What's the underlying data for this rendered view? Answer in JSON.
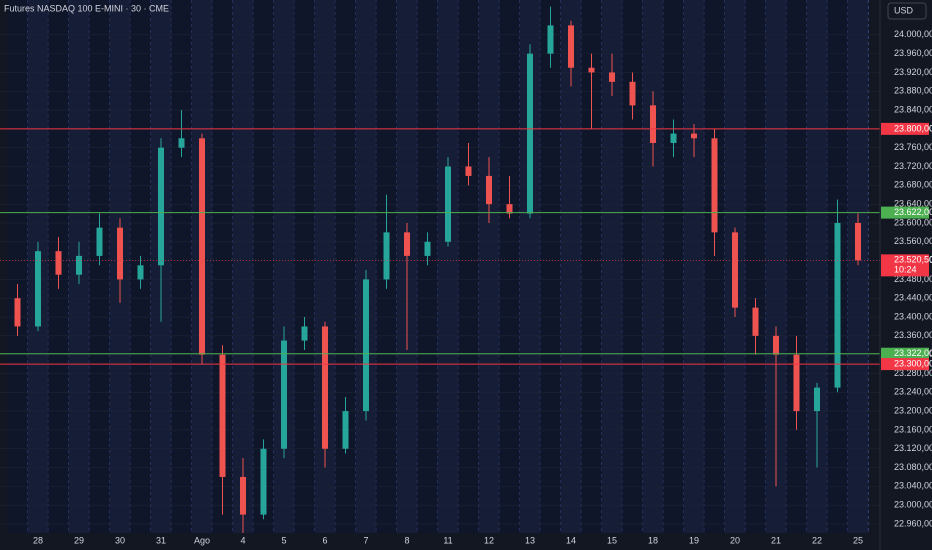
{
  "chart_data": {
    "type": "candlestick",
    "title": "Futures NASDAQ 100 E-MINI · 30 · CME",
    "currency": "USD",
    "categories": [
      null,
      "28",
      null,
      "29",
      null,
      "30",
      null,
      "31",
      null,
      "Ago",
      null,
      "4",
      null,
      "5",
      null,
      "6",
      null,
      "7",
      null,
      "8",
      null,
      "11",
      null,
      "12",
      null,
      "13",
      null,
      "14",
      null,
      "15",
      null,
      "18",
      null,
      "19",
      null,
      "20",
      null,
      "21",
      null,
      "22",
      null,
      "25"
    ],
    "open": [
      23440,
      23380,
      23540,
      23490,
      23530,
      23590,
      23480,
      23510,
      23760,
      23780,
      23320,
      23060,
      22980,
      23120,
      23350,
      23380,
      23120,
      23200,
      23480,
      23580,
      23530,
      23560,
      23720,
      23700,
      23640,
      23620,
      23960,
      24020,
      23930,
      23920,
      23900,
      23850,
      23770,
      23790,
      23780,
      23580,
      23420,
      23360,
      23320,
      23200,
      23250,
      23600
    ],
    "high": [
      23470,
      23560,
      23570,
      23560,
      23620,
      23610,
      23530,
      23780,
      23840,
      23790,
      23340,
      23100,
      23140,
      23380,
      23400,
      23390,
      23230,
      23500,
      23660,
      23600,
      23580,
      23740,
      23770,
      23740,
      23700,
      23980,
      24060,
      24030,
      23960,
      23960,
      23920,
      23880,
      23820,
      23810,
      23800,
      23590,
      23440,
      23380,
      23360,
      23260,
      23650,
      23620
    ],
    "low": [
      23360,
      23370,
      23460,
      23470,
      23510,
      23430,
      23460,
      23390,
      23740,
      23300,
      22980,
      22940,
      22970,
      23100,
      23330,
      23080,
      23110,
      23180,
      23460,
      23330,
      23510,
      23550,
      23680,
      23600,
      23610,
      23610,
      23930,
      23890,
      23800,
      23870,
      23820,
      23720,
      23740,
      23740,
      23530,
      23400,
      23320,
      23040,
      23160,
      23080,
      23240,
      23510
    ],
    "close": [
      23380,
      23540,
      23490,
      23530,
      23590,
      23480,
      23510,
      23760,
      23780,
      23320,
      23060,
      22980,
      23120,
      23350,
      23380,
      23120,
      23200,
      23480,
      23580,
      23530,
      23560,
      23720,
      23700,
      23640,
      23620,
      23960,
      24020,
      23930,
      23920,
      23900,
      23850,
      23770,
      23790,
      23780,
      23580,
      23420,
      23360,
      23320,
      23200,
      23250,
      23600,
      23520.5
    ],
    "up_color": "#26a69a",
    "down_color": "#ef5350",
    "ylim": [
      22943,
      24074
    ],
    "yticks": [
      {
        "value": 22960,
        "label": "22.960,00"
      },
      {
        "value": 23000,
        "label": "23.000,00"
      },
      {
        "value": 23040,
        "label": "23.040,00"
      },
      {
        "value": 23080,
        "label": "23.080,00"
      },
      {
        "value": 23120,
        "label": "23.120,00"
      },
      {
        "value": 23160,
        "label": "23.160,00"
      },
      {
        "value": 23200,
        "label": "23.200,00"
      },
      {
        "value": 23240,
        "label": "23.240,00"
      },
      {
        "value": 23280,
        "label": "23.280,00"
      },
      {
        "value": 23320,
        "label": "23.320,00"
      },
      {
        "value": 23360,
        "label": "23.360,00"
      },
      {
        "value": 23400,
        "label": "23.400,00"
      },
      {
        "value": 23440,
        "label": "23.440,00"
      },
      {
        "value": 23480,
        "label": "23.480,00"
      },
      {
        "value": 23520,
        "label": "23.520,00"
      },
      {
        "value": 23560,
        "label": "23.560,00"
      },
      {
        "value": 23600,
        "label": "23.600,00"
      },
      {
        "value": 23640,
        "label": "23.640,00"
      },
      {
        "value": 23680,
        "label": "23.680,00"
      },
      {
        "value": 23720,
        "label": "23.720,00"
      },
      {
        "value": 23760,
        "label": "23.760,00"
      },
      {
        "value": 23800,
        "label": "23.800,00"
      },
      {
        "value": 23840,
        "label": "23.840,00"
      },
      {
        "value": 23880,
        "label": "23.880,00"
      },
      {
        "value": 23920,
        "label": "23.920,00"
      },
      {
        "value": 23960,
        "label": "23.960,00"
      },
      {
        "value": 24000,
        "label": "24.000,00"
      }
    ],
    "grid": true,
    "levels": [
      {
        "value": 23800,
        "label": "23.800,00",
        "color": "#f23645"
      },
      {
        "value": 23622,
        "label": "23.622,00",
        "color": "#4caf50"
      },
      {
        "value": 23322,
        "label": "23.322,00",
        "color": "#4caf50"
      },
      {
        "value": 23300,
        "label": "23.300,00",
        "color": "#f23645"
      }
    ],
    "last_price": {
      "value": 23520.5,
      "label": "23.520,50",
      "countdown": "10:24",
      "color": "#f23645"
    }
  }
}
